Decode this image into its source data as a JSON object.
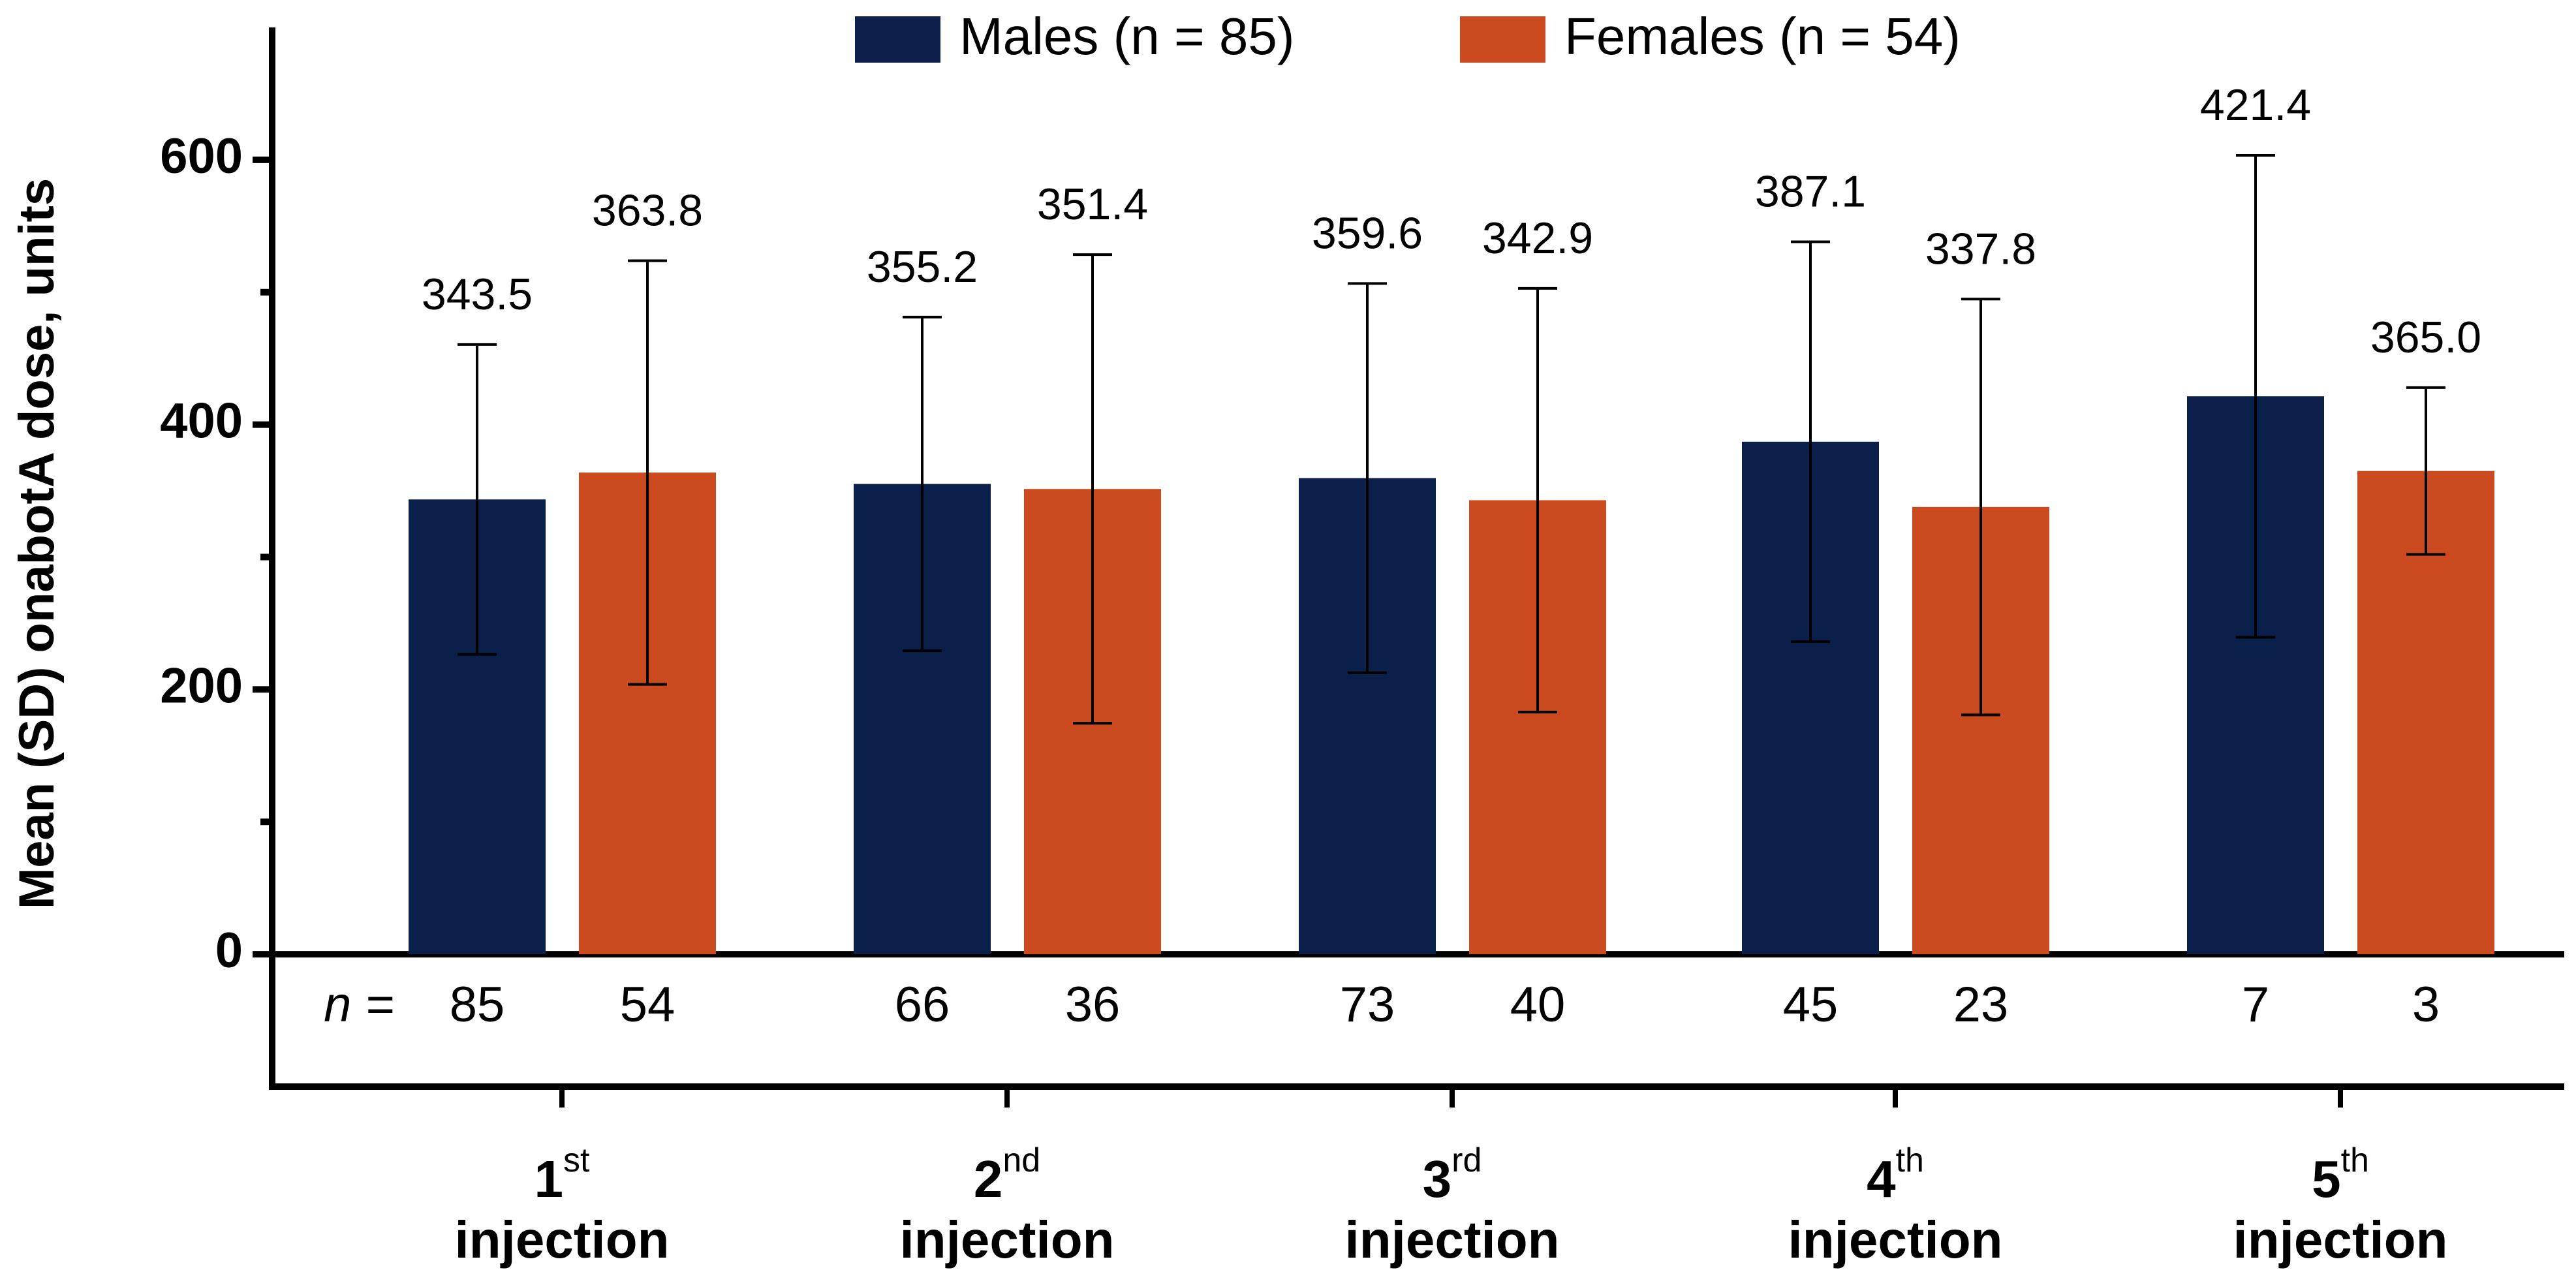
{
  "chart_data": {
    "type": "bar",
    "y_label": "Mean (SD) onabotA dose, units",
    "categories": [
      {
        "ordinal": "1",
        "suffix": "st",
        "word": "injection"
      },
      {
        "ordinal": "2",
        "suffix": "nd",
        "word": "injection"
      },
      {
        "ordinal": "3",
        "suffix": "rd",
        "word": "injection"
      },
      {
        "ordinal": "4",
        "suffix": "th",
        "word": "injection"
      },
      {
        "ordinal": "5",
        "suffix": "th",
        "word": "injection"
      }
    ],
    "n_label": "n =",
    "series": [
      {
        "name": "Males (n = 85)",
        "color": "#0b1f4b",
        "values": [
          343.5,
          355.2,
          359.6,
          387.1,
          421.4
        ],
        "value_labels": [
          "343.5",
          "355.2",
          "359.6",
          "387.1",
          "421.4"
        ],
        "sd": [
          117,
          126,
          147,
          151,
          182
        ],
        "n": [
          85,
          66,
          73,
          45,
          7
        ]
      },
      {
        "name": "Females (n = 54)",
        "color": "#cc4a1f",
        "values": [
          363.8,
          351.4,
          342.9,
          337.8,
          365.0
        ],
        "value_labels": [
          "363.8",
          "351.4",
          "342.9",
          "337.8",
          "365.0"
        ],
        "sd": [
          160,
          177,
          160,
          157,
          63
        ],
        "n": [
          54,
          36,
          40,
          23,
          3
        ]
      }
    ],
    "ylim": [
      -100,
      700
    ],
    "yticks": [
      0,
      200,
      400,
      600
    ],
    "minor_yticks": [
      100,
      300,
      500
    ],
    "grid": false,
    "legend": "top"
  }
}
